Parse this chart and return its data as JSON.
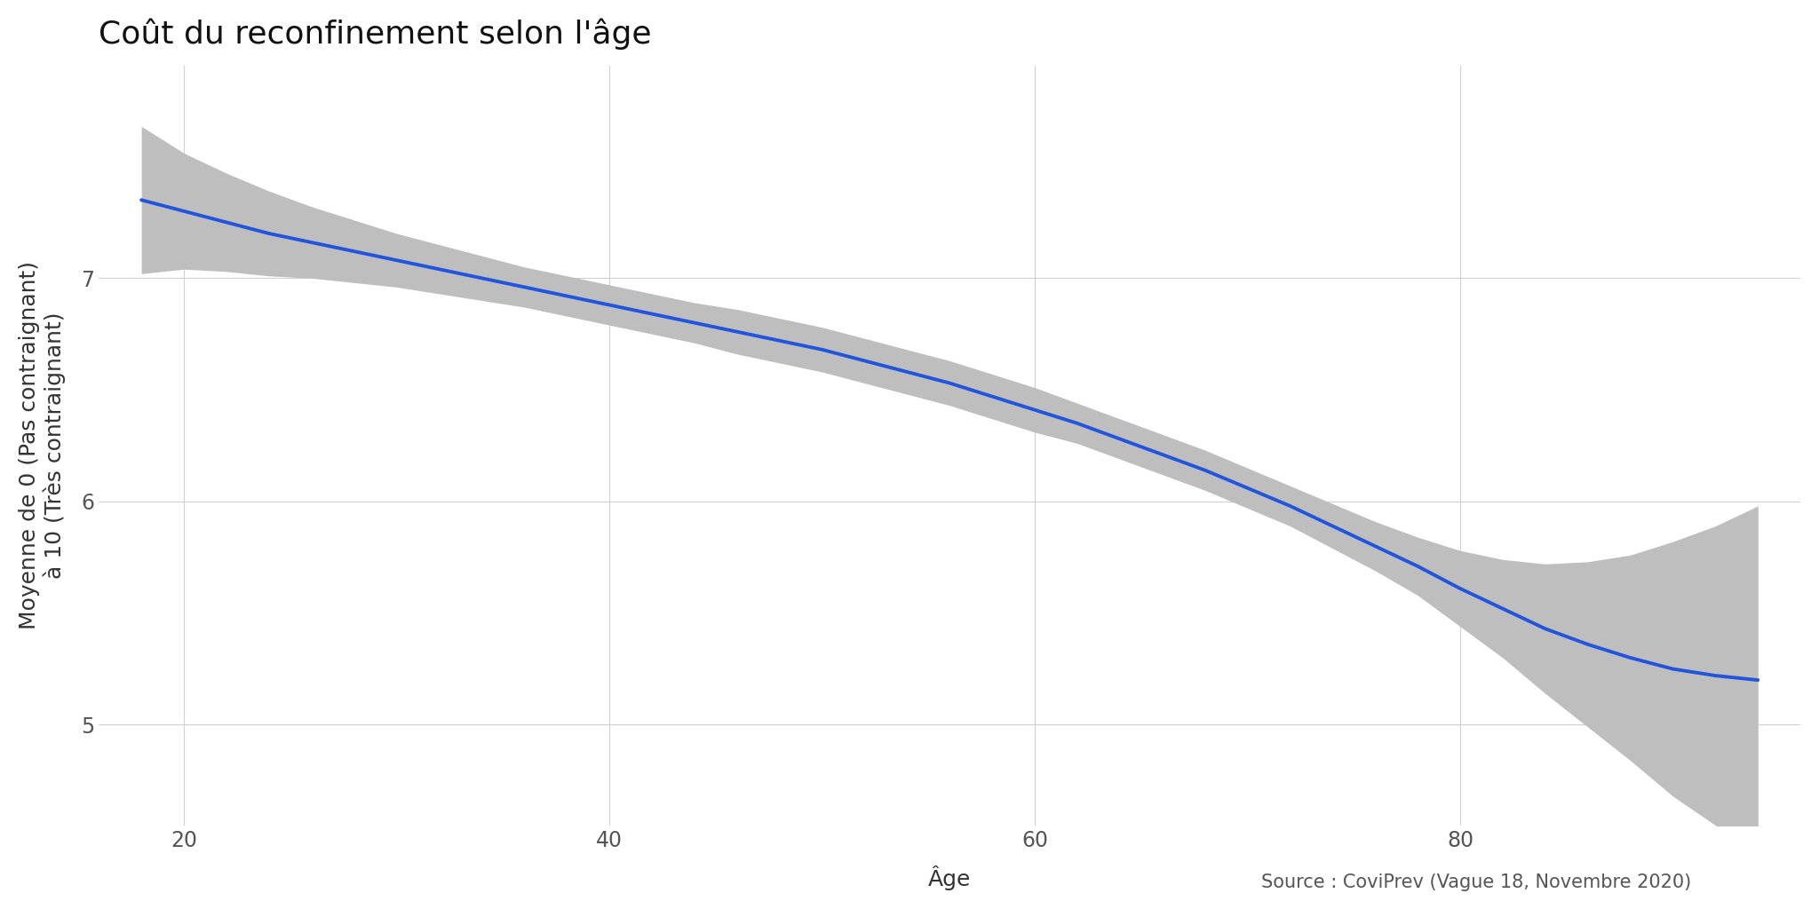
{
  "title": "Coût du reconfinement selon l'âge",
  "xlabel": "Âge",
  "ylabel": "Moyenne de 0 (Pas contraignant)\nà 10 (Très contraignant)",
  "source_text": "Source : CoviPrev (Vague 18, Novembre 2020)",
  "x_ticks": [
    20,
    40,
    60,
    80
  ],
  "y_ticks": [
    5,
    6,
    7
  ],
  "xlim": [
    16,
    96
  ],
  "ylim": [
    4.55,
    7.95
  ],
  "line_color": "#2255dd",
  "ci_color": "#bebebe",
  "bg_color": "#ffffff",
  "grid_color": "#d0d0d0",
  "curve_x": [
    18,
    20,
    22,
    24,
    26,
    28,
    30,
    32,
    34,
    36,
    38,
    40,
    42,
    44,
    46,
    48,
    50,
    52,
    54,
    56,
    58,
    60,
    62,
    64,
    66,
    68,
    70,
    72,
    74,
    76,
    78,
    80,
    82,
    84,
    86,
    88,
    90,
    92,
    94
  ],
  "curve_y": [
    7.35,
    7.3,
    7.25,
    7.2,
    7.16,
    7.12,
    7.08,
    7.04,
    7.0,
    6.96,
    6.92,
    6.88,
    6.84,
    6.8,
    6.76,
    6.72,
    6.68,
    6.63,
    6.58,
    6.53,
    6.47,
    6.41,
    6.35,
    6.28,
    6.21,
    6.14,
    6.06,
    5.98,
    5.89,
    5.8,
    5.71,
    5.61,
    5.52,
    5.43,
    5.36,
    5.3,
    5.25,
    5.22,
    5.2
  ],
  "ci_upper": [
    7.68,
    7.56,
    7.47,
    7.39,
    7.32,
    7.26,
    7.2,
    7.15,
    7.1,
    7.05,
    7.01,
    6.97,
    6.93,
    6.89,
    6.86,
    6.82,
    6.78,
    6.73,
    6.68,
    6.63,
    6.57,
    6.51,
    6.44,
    6.37,
    6.3,
    6.23,
    6.15,
    6.07,
    5.99,
    5.91,
    5.84,
    5.78,
    5.74,
    5.72,
    5.73,
    5.76,
    5.82,
    5.89,
    5.98
  ],
  "ci_lower": [
    7.02,
    7.04,
    7.03,
    7.01,
    7.0,
    6.98,
    6.96,
    6.93,
    6.9,
    6.87,
    6.83,
    6.79,
    6.75,
    6.71,
    6.66,
    6.62,
    6.58,
    6.53,
    6.48,
    6.43,
    6.37,
    6.31,
    6.26,
    6.19,
    6.12,
    6.05,
    5.97,
    5.89,
    5.79,
    5.69,
    5.58,
    5.44,
    5.3,
    5.14,
    4.99,
    4.84,
    4.68,
    4.55,
    4.42
  ],
  "title_fontsize": 26,
  "label_fontsize": 18,
  "tick_fontsize": 17,
  "source_fontsize": 15
}
